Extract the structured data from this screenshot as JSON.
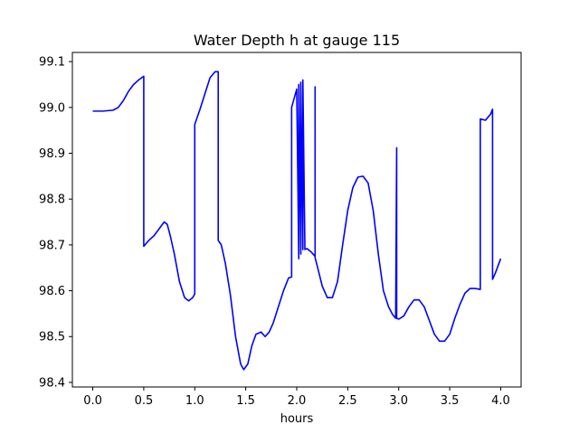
{
  "chart_data": {
    "type": "line",
    "title": "Water Depth h at gauge 115",
    "xlabel": "hours",
    "ylabel": "",
    "xlim": [
      -0.2,
      4.2
    ],
    "ylim": [
      98.39,
      99.12
    ],
    "xticks": [
      0.0,
      0.5,
      1.0,
      1.5,
      2.0,
      2.5,
      3.0,
      3.5,
      4.0
    ],
    "xtick_labels": [
      "0.0",
      "0.5",
      "1.0",
      "1.5",
      "2.0",
      "2.5",
      "3.0",
      "3.5",
      "4.0"
    ],
    "yticks": [
      98.4,
      98.5,
      98.6,
      98.7,
      98.8,
      98.9,
      99.0,
      99.1
    ],
    "ytick_labels": [
      "98.4",
      "98.5",
      "98.6",
      "98.7",
      "98.8",
      "98.9",
      "99.0",
      "99.1"
    ],
    "grid": false,
    "series": [
      {
        "color": "#0000ff",
        "x": [
          0.0,
          0.1,
          0.2,
          0.25,
          0.3,
          0.35,
          0.4,
          0.45,
          0.5,
          0.5,
          0.55,
          0.6,
          0.65,
          0.7,
          0.73,
          0.76,
          0.8,
          0.85,
          0.9,
          0.94,
          0.98,
          1.0,
          1.0,
          1.05,
          1.1,
          1.15,
          1.2,
          1.23,
          1.23,
          1.26,
          1.3,
          1.35,
          1.4,
          1.45,
          1.48,
          1.52,
          1.56,
          1.6,
          1.65,
          1.69,
          1.73,
          1.77,
          1.82,
          1.87,
          1.92,
          1.95,
          1.95,
          2.0,
          2.02,
          2.02,
          2.04,
          2.04,
          2.06,
          2.06,
          2.08,
          2.08,
          2.1,
          2.14,
          2.18,
          2.18,
          2.18,
          2.2,
          2.25,
          2.3,
          2.35,
          2.4,
          2.45,
          2.5,
          2.55,
          2.6,
          2.65,
          2.7,
          2.75,
          2.8,
          2.85,
          2.9,
          2.94,
          2.97,
          2.98,
          2.98,
          3.0,
          3.05,
          3.1,
          3.15,
          3.2,
          3.25,
          3.3,
          3.35,
          3.4,
          3.45,
          3.5,
          3.55,
          3.6,
          3.65,
          3.7,
          3.75,
          3.8,
          3.8,
          3.85,
          3.9,
          3.92,
          3.92,
          3.95,
          4.0
        ],
        "y": [
          98.992,
          98.992,
          98.994,
          99.0,
          99.015,
          99.035,
          99.05,
          99.06,
          99.068,
          98.697,
          98.71,
          98.72,
          98.735,
          98.75,
          98.745,
          98.72,
          98.68,
          98.62,
          98.585,
          98.578,
          98.585,
          98.593,
          98.963,
          98.995,
          99.03,
          99.065,
          99.078,
          99.078,
          98.71,
          98.7,
          98.66,
          98.59,
          98.5,
          98.44,
          98.428,
          98.44,
          98.48,
          98.505,
          98.51,
          98.5,
          98.51,
          98.53,
          98.565,
          98.6,
          98.628,
          98.63,
          99.0,
          99.04,
          98.67,
          99.05,
          98.68,
          99.055,
          98.69,
          99.06,
          98.692,
          98.69,
          98.692,
          98.685,
          98.675,
          99.045,
          98.672,
          98.655,
          98.61,
          98.585,
          98.585,
          98.62,
          98.7,
          98.775,
          98.825,
          98.848,
          98.85,
          98.835,
          98.775,
          98.68,
          98.6,
          98.565,
          98.548,
          98.54,
          98.912,
          98.54,
          98.538,
          98.545,
          98.565,
          98.58,
          98.58,
          98.565,
          98.535,
          98.505,
          98.49,
          98.49,
          98.505,
          98.54,
          98.57,
          98.595,
          98.605,
          98.605,
          98.603,
          98.975,
          98.972,
          98.985,
          98.996,
          98.625,
          98.64,
          98.67
        ]
      }
    ]
  }
}
